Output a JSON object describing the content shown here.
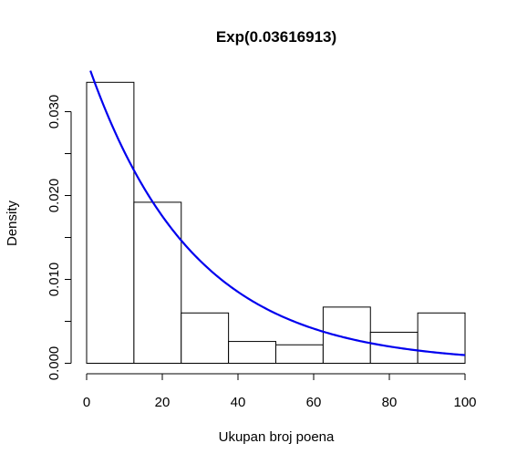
{
  "chart_data": {
    "type": "histogram",
    "title": "Exp(0.03616913)",
    "xlabel": "Ukupan broj poena",
    "ylabel": "Density",
    "xlim": [
      0,
      100
    ],
    "ylim": [
      0,
      0.0335
    ],
    "x_ticks": [
      0,
      20,
      40,
      60,
      80,
      100
    ],
    "x_tick_labels": [
      "0",
      "20",
      "40",
      "60",
      "80",
      "100"
    ],
    "y_ticks": [
      0.0,
      0.01,
      0.02,
      0.03
    ],
    "y_minor_ticks": [
      0.005,
      0.015,
      0.025
    ],
    "y_tick_labels": [
      "0.000",
      "0.010",
      "0.020",
      "0.030"
    ],
    "bins": [
      {
        "x0": 0,
        "x1": 12.5,
        "density": 0.0335
      },
      {
        "x0": 12.5,
        "x1": 25,
        "density": 0.0192
      },
      {
        "x0": 25,
        "x1": 37.5,
        "density": 0.006
      },
      {
        "x0": 37.5,
        "x1": 50,
        "density": 0.0026
      },
      {
        "x0": 50,
        "x1": 62.5,
        "density": 0.0022
      },
      {
        "x0": 62.5,
        "x1": 75,
        "density": 0.0067
      },
      {
        "x0": 75,
        "x1": 87.5,
        "density": 0.0037
      },
      {
        "x0": 87.5,
        "x1": 100,
        "density": 0.006
      }
    ],
    "curve": {
      "type": "exponential-density",
      "rate": 0.03616913,
      "x_start": 1,
      "x_end": 100,
      "color": "#0000ee"
    }
  }
}
